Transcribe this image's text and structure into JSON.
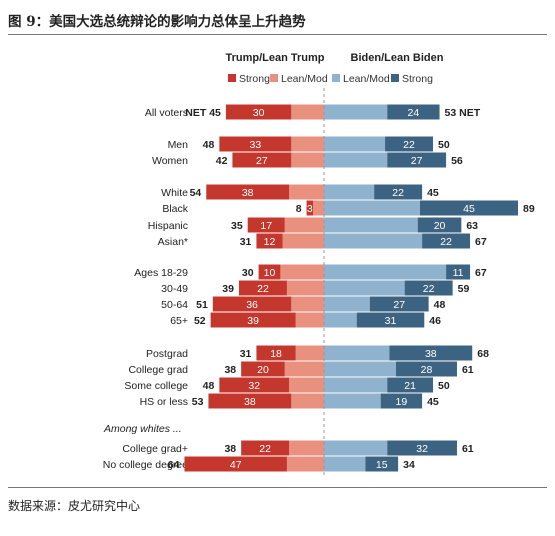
{
  "figure": {
    "title": "图 9：美国大选总统辩论的影响力总体呈上升趋势",
    "source": "数据来源：皮尤研究中心"
  },
  "chart_data": {
    "type": "bar",
    "subtype": "diverging-stacked",
    "headers": {
      "left": "Trump/Lean Trump",
      "right": "Biden/Lean Biden"
    },
    "legend": [
      {
        "key": "trump_strong",
        "label": "Strong",
        "color": "#c4372d"
      },
      {
        "key": "trump_lean",
        "label": "Lean/Mod",
        "color": "#e9907f"
      },
      {
        "key": "biden_lean",
        "label": "Lean/Mod",
        "color": "#8fb3cf"
      },
      {
        "key": "biden_strong",
        "label": "Strong",
        "color": "#3d6383"
      }
    ],
    "net_label": "NET",
    "group_label": "Among whites ...",
    "xlim": [
      -75,
      95
    ],
    "rows": [
      {
        "label": "All voters",
        "trump_net": 45,
        "trump_strong": 30,
        "biden_strong": 24,
        "biden_net": 53,
        "net": true
      },
      {
        "label": "Men",
        "trump_net": 48,
        "trump_strong": 33,
        "biden_strong": 22,
        "biden_net": 50
      },
      {
        "label": "Women",
        "trump_net": 42,
        "trump_strong": 27,
        "biden_strong": 27,
        "biden_net": 56
      },
      {
        "label": "White",
        "trump_net": 54,
        "trump_strong": 38,
        "biden_strong": 22,
        "biden_net": 45
      },
      {
        "label": "Black",
        "trump_net": 8,
        "trump_strong": 3,
        "biden_strong": 45,
        "biden_net": 89
      },
      {
        "label": "Hispanic",
        "trump_net": 35,
        "trump_strong": 17,
        "biden_strong": 20,
        "biden_net": 63
      },
      {
        "label": "Asian*",
        "trump_net": 31,
        "trump_strong": 12,
        "biden_strong": 22,
        "biden_net": 67
      },
      {
        "label": "Ages 18-29",
        "trump_net": 30,
        "trump_strong": 10,
        "biden_strong": 11,
        "biden_net": 67
      },
      {
        "label": "30-49",
        "trump_net": 39,
        "trump_strong": 22,
        "biden_strong": 22,
        "biden_net": 59
      },
      {
        "label": "50-64",
        "trump_net": 51,
        "trump_strong": 36,
        "biden_strong": 27,
        "biden_net": 48
      },
      {
        "label": "65+",
        "trump_net": 52,
        "trump_strong": 39,
        "biden_strong": 31,
        "biden_net": 46
      },
      {
        "label": "Postgrad",
        "trump_net": 31,
        "trump_strong": 18,
        "biden_strong": 38,
        "biden_net": 68
      },
      {
        "label": "College grad",
        "trump_net": 38,
        "trump_strong": 20,
        "biden_strong": 28,
        "biden_net": 61
      },
      {
        "label": "Some college",
        "trump_net": 48,
        "trump_strong": 32,
        "biden_strong": 21,
        "biden_net": 50
      },
      {
        "label": "HS or less",
        "trump_net": 53,
        "trump_strong": 38,
        "biden_strong": 19,
        "biden_net": 45
      },
      {
        "label": "College grad+",
        "trump_net": 38,
        "trump_strong": 22,
        "biden_strong": 32,
        "biden_net": 61
      },
      {
        "label": "No college degree",
        "trump_net": 64,
        "trump_strong": 47,
        "biden_strong": 15,
        "biden_net": 34
      }
    ]
  }
}
